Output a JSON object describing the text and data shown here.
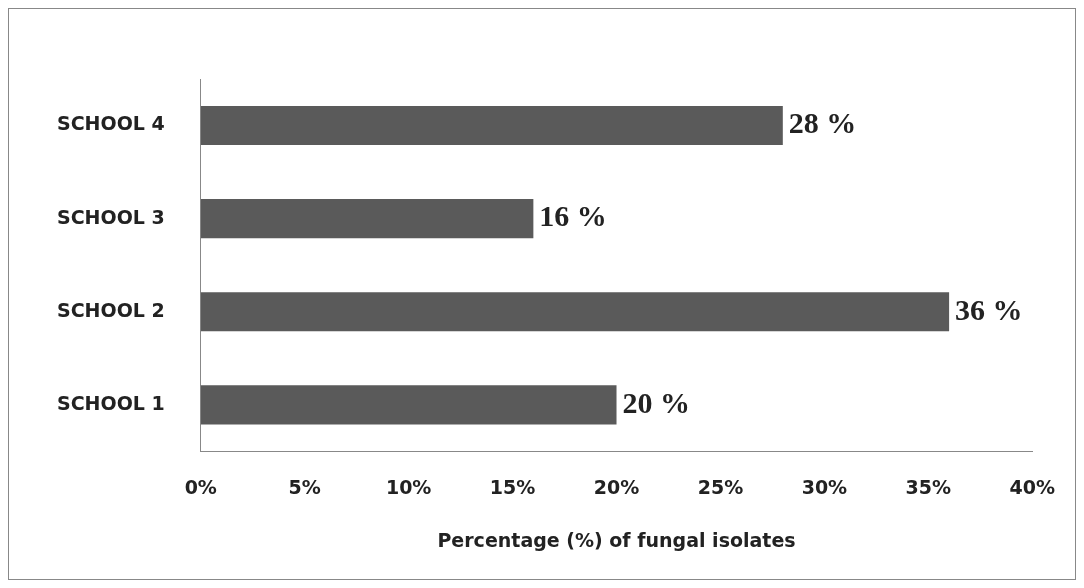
{
  "chart_data": {
    "type": "bar",
    "orientation": "horizontal",
    "xlabel": "Percentage (%) of fungal isolates",
    "categories": [
      "SCHOOL 4",
      "SCHOOL 3",
      "SCHOOL 2",
      "SCHOOL 1"
    ],
    "values": [
      28,
      16,
      36,
      20
    ],
    "color": "#5a5a5a",
    "value_labels": [
      "28 %",
      "16 %",
      "36 %",
      "20 %"
    ],
    "xlim": [
      0,
      40
    ],
    "xticks": [
      {
        "value": 0,
        "label": "0%"
      },
      {
        "value": 5,
        "label": "5%"
      },
      {
        "value": 10,
        "label": "10%"
      },
      {
        "value": 15,
        "label": "15%"
      },
      {
        "value": 20,
        "label": "20%"
      },
      {
        "value": 25,
        "label": "25%"
      },
      {
        "value": 30,
        "label": "30%"
      },
      {
        "value": 35,
        "label": "35%"
      },
      {
        "value": 40,
        "label": "40%"
      }
    ],
    "grid": false,
    "legend": false
  }
}
